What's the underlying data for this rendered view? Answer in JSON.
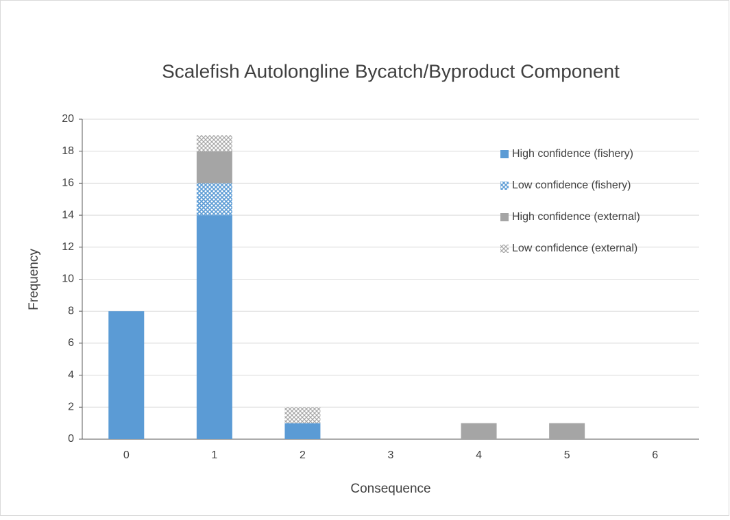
{
  "chart_data": {
    "type": "stacked_bar",
    "title": "Scalefish Autolongline Bycatch/Byproduct  Component",
    "x_label": "Consequence",
    "y_label": "Frequency",
    "categories": [
      "0",
      "1",
      "2",
      "3",
      "4",
      "5",
      "6"
    ],
    "series": [
      {
        "name": "High confidence (fishery)",
        "color": "#5b9bd5",
        "pattern": "solid",
        "values": [
          8,
          14,
          1,
          0,
          0,
          0,
          0
        ]
      },
      {
        "name": "Low confidence (fishery)",
        "color": "#5b9bd5",
        "pattern": "hatch",
        "values": [
          0,
          2,
          0,
          0,
          0,
          0,
          0
        ]
      },
      {
        "name": "High confidence (external)",
        "color": "#a5a5a5",
        "pattern": "solid",
        "values": [
          0,
          2,
          0,
          0,
          1,
          1,
          0
        ]
      },
      {
        "name": "Low confidence (external)",
        "color": "#a5a5a5",
        "pattern": "hatch",
        "values": [
          0,
          1,
          1,
          0,
          0,
          0,
          0
        ]
      }
    ],
    "ylim": [
      0,
      20
    ],
    "yticks": [
      0,
      2,
      4,
      6,
      8,
      10,
      12,
      14,
      16,
      18,
      20
    ],
    "grid": true,
    "legend": "top-right"
  }
}
